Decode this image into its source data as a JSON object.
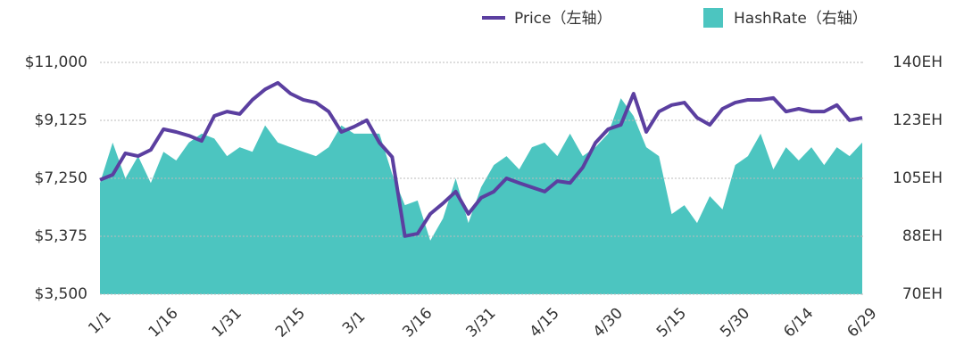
{
  "chart_data": {
    "type": "line-area",
    "categories": [
      "1/1",
      null,
      null,
      null,
      null,
      "1/16",
      null,
      null,
      null,
      null,
      "1/31",
      null,
      null,
      null,
      null,
      "2/15",
      null,
      null,
      null,
      null,
      "3/1",
      null,
      null,
      null,
      null,
      "3/16",
      null,
      null,
      null,
      null,
      "3/31",
      null,
      null,
      null,
      null,
      "4/15",
      null,
      null,
      null,
      null,
      "4/30",
      null,
      null,
      null,
      null,
      "5/15",
      null,
      null,
      null,
      null,
      "5/30",
      null,
      null,
      null,
      null,
      "6/14",
      null,
      null,
      null,
      null,
      "6/29"
    ],
    "series": [
      {
        "name": "Price（左轴）",
        "color": "#5b3fa0",
        "kind": "line",
        "axis": "y",
        "values": [
          7200,
          7365,
          8060,
          7970,
          8170,
          8840,
          8750,
          8630,
          8460,
          9270,
          9410,
          9330,
          9790,
          10130,
          10340,
          9990,
          9790,
          9700,
          9410,
          8750,
          8920,
          9130,
          8400,
          7940,
          5380,
          5460,
          6100,
          6440,
          6820,
          6100,
          6620,
          6820,
          7250,
          7100,
          6960,
          6820,
          7160,
          7100,
          7600,
          8400,
          8840,
          8980,
          9990,
          8750,
          9410,
          9620,
          9700,
          9210,
          8980,
          9500,
          9700,
          9790,
          9790,
          9850,
          9410,
          9500,
          9410,
          9410,
          9620,
          9130,
          9210
        ]
      },
      {
        "name": "HashRate（右轴）",
        "color": "#4cc5c0",
        "kind": "area",
        "axis": "y2",
        "values": [
          103.6,
          115.8,
          105,
          111.7,
          103.6,
          113,
          110.4,
          115.8,
          118.5,
          117,
          111.7,
          114.4,
          113,
          121,
          115.8,
          114.4,
          113,
          111.7,
          114.4,
          121,
          118.5,
          118.5,
          118.5,
          106.3,
          96.9,
          98.3,
          86.2,
          92.9,
          105,
          91.5,
          102.3,
          109,
          111.7,
          107.7,
          114.4,
          115.8,
          111.7,
          118.5,
          111.7,
          114.4,
          118.5,
          129.2,
          123.8,
          114.4,
          111.7,
          94.2,
          96.9,
          91.5,
          99.6,
          95.6,
          109,
          111.7,
          118.5,
          107.7,
          114.4,
          110.4,
          114.4,
          109,
          114.4,
          111.7,
          115.8
        ]
      }
    ],
    "ylim": [
      3500,
      11000
    ],
    "yticks": [
      {
        "value": 3500,
        "label": "$3,500"
      },
      {
        "value": 5375,
        "label": "$5,375"
      },
      {
        "value": 7250,
        "label": "$7,250"
      },
      {
        "value": 9125,
        "label": "$9,125"
      },
      {
        "value": 11000,
        "label": "$11,000"
      }
    ],
    "y2lim": [
      70,
      140
    ],
    "y2ticks": [
      {
        "value": 70,
        "label": "70EH"
      },
      {
        "value": 87.5,
        "label": "88EH"
      },
      {
        "value": 105,
        "label": "105EH"
      },
      {
        "value": 122.5,
        "label": "123EH"
      },
      {
        "value": 140,
        "label": "140EH"
      }
    ],
    "grid": true
  }
}
